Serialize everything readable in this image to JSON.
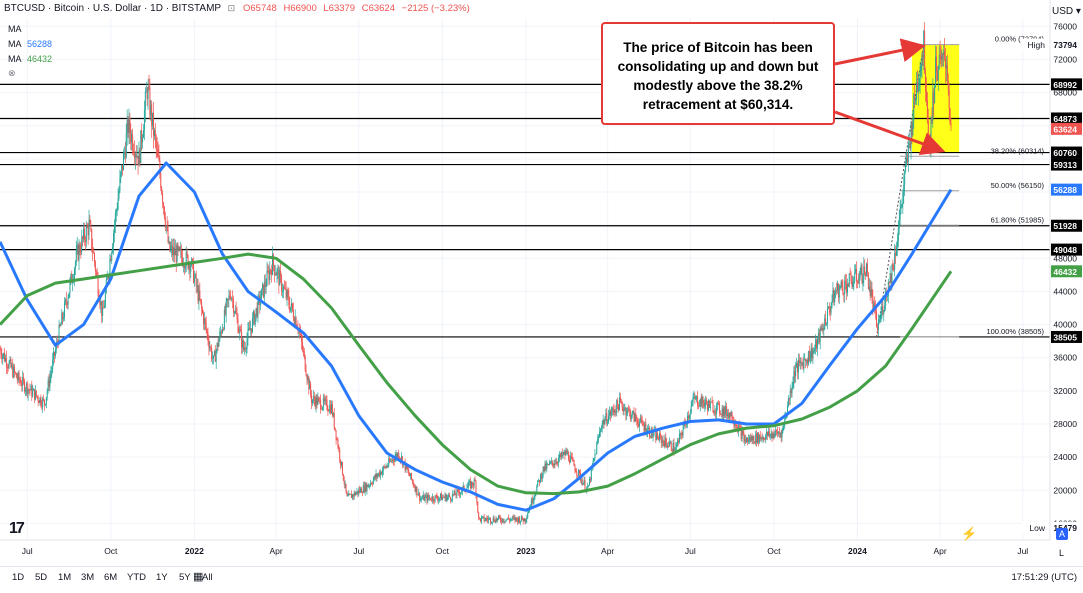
{
  "header": {
    "symbol": "BTCUSD · Bitcoin · U.S. Dollar · 1D · BITSTAMP",
    "open": "O65748",
    "high": "H66900",
    "low": "L63379",
    "close": "C63624",
    "change": "−2125 (−3.23%)"
  },
  "indicators": [
    {
      "label": "MA",
      "value": "",
      "color": "#131722"
    },
    {
      "label": "MA",
      "value": "56288",
      "color": "#2979ff"
    },
    {
      "label": "MA",
      "value": "46432",
      "color": "#43a047"
    }
  ],
  "callout": {
    "text": "The price of Bitcoin has been consolidating up and down but modestly above the 38.2% retracement at $60,314."
  },
  "timeframes": [
    "1D",
    "5D",
    "1M",
    "3M",
    "6M",
    "YTD",
    "1Y",
    "5Y",
    "All"
  ],
  "clock": "17:51:29 (UTC)",
  "scale_buttons": {
    "auto": "A",
    "log": "L"
  },
  "colors": {
    "up": "#26a69a",
    "down": "#ef5350",
    "ma_blue": "#2979ff",
    "ma_green": "#43a047",
    "callout_red": "#e53935",
    "highlight": "#ffff00"
  },
  "chart_data": {
    "type": "candlestick",
    "title": "BTCUSD · Bitcoin · U.S. Dollar · 1D · BITSTAMP",
    "y_axis": {
      "range": [
        14000,
        77000
      ],
      "ticks": [
        76000,
        72000,
        68000,
        64000,
        60000,
        56000,
        52000,
        48000,
        44000,
        40000,
        36000,
        32000,
        28000,
        24000,
        20000,
        16000
      ]
    },
    "x_axis": {
      "range": [
        "2021-06-01",
        "2024-07-31"
      ],
      "ticks": [
        {
          "label": "Jul",
          "date": "2021-07-01"
        },
        {
          "label": "Oct",
          "date": "2021-10-01"
        },
        {
          "label": "2022",
          "date": "2022-01-01"
        },
        {
          "label": "Apr",
          "date": "2022-04-01"
        },
        {
          "label": "Jul",
          "date": "2022-07-01"
        },
        {
          "label": "Oct",
          "date": "2022-10-01"
        },
        {
          "label": "2023",
          "date": "2023-01-01"
        },
        {
          "label": "Apr",
          "date": "2023-04-01"
        },
        {
          "label": "Jul",
          "date": "2023-07-01"
        },
        {
          "label": "Oct",
          "date": "2023-10-01"
        },
        {
          "label": "2024",
          "date": "2024-01-01"
        },
        {
          "label": "Apr",
          "date": "2024-04-01"
        },
        {
          "label": "Jul",
          "date": "2024-07-01"
        }
      ]
    },
    "price_path": [
      [
        "2021-06-01",
        37000
      ],
      [
        "2021-06-20",
        33500
      ],
      [
        "2021-07-20",
        30500
      ],
      [
        "2021-08-05",
        39000
      ],
      [
        "2021-08-25",
        48500
      ],
      [
        "2021-09-07",
        52000
      ],
      [
        "2021-09-22",
        41000
      ],
      [
        "2021-10-06",
        53000
      ],
      [
        "2021-10-20",
        64000
      ],
      [
        "2021-11-01",
        60000
      ],
      [
        "2021-11-10",
        68500
      ],
      [
        "2021-11-25",
        57500
      ],
      [
        "2021-12-04",
        49000
      ],
      [
        "2021-12-28",
        47500
      ],
      [
        "2022-01-22",
        35500
      ],
      [
        "2022-02-10",
        44000
      ],
      [
        "2022-02-24",
        37000
      ],
      [
        "2022-03-28",
        47500
      ],
      [
        "2022-04-25",
        40000
      ],
      [
        "2022-05-10",
        31000
      ],
      [
        "2022-06-01",
        30000
      ],
      [
        "2022-06-18",
        19000
      ],
      [
        "2022-07-10",
        20500
      ],
      [
        "2022-08-14",
        24500
      ],
      [
        "2022-09-07",
        19000
      ],
      [
        "2022-10-10",
        19200
      ],
      [
        "2022-11-06",
        21000
      ],
      [
        "2022-11-10",
        16500
      ],
      [
        "2022-12-31",
        16500
      ],
      [
        "2023-01-20",
        22500
      ],
      [
        "2023-02-15",
        24500
      ],
      [
        "2023-03-10",
        20000
      ],
      [
        "2023-03-25",
        28000
      ],
      [
        "2023-04-14",
        30500
      ],
      [
        "2023-05-20",
        26800
      ],
      [
        "2023-06-15",
        25000
      ],
      [
        "2023-07-05",
        31000
      ],
      [
        "2023-08-15",
        29200
      ],
      [
        "2023-08-30",
        26000
      ],
      [
        "2023-10-10",
        27000
      ],
      [
        "2023-10-24",
        34500
      ],
      [
        "2023-11-15",
        37000
      ],
      [
        "2023-12-08",
        44000
      ],
      [
        "2024-01-11",
        46500
      ],
      [
        "2024-01-23",
        39500
      ],
      [
        "2024-02-10",
        47500
      ],
      [
        "2024-02-28",
        62500
      ],
      [
        "2024-03-05",
        68000
      ],
      [
        "2024-03-14",
        73794
      ],
      [
        "2024-03-20",
        61500
      ],
      [
        "2024-03-27",
        71000
      ],
      [
        "2024-04-08",
        72000
      ],
      [
        "2024-04-13",
        63624
      ]
    ],
    "series": [
      {
        "name": "MA (blue)",
        "last_value": 56288,
        "values": [
          [
            "2021-06-01",
            50000
          ],
          [
            "2021-07-01",
            43000
          ],
          [
            "2021-08-01",
            37500
          ],
          [
            "2021-09-01",
            40000
          ],
          [
            "2021-10-01",
            45500
          ],
          [
            "2021-11-01",
            55500
          ],
          [
            "2021-12-01",
            59500
          ],
          [
            "2022-01-01",
            56000
          ],
          [
            "2022-02-01",
            48500
          ],
          [
            "2022-03-01",
            44000
          ],
          [
            "2022-04-01",
            41500
          ],
          [
            "2022-05-01",
            39000
          ],
          [
            "2022-06-01",
            35000
          ],
          [
            "2022-07-01",
            29000
          ],
          [
            "2022-08-01",
            24500
          ],
          [
            "2022-09-01",
            22500
          ],
          [
            "2022-10-01",
            21000
          ],
          [
            "2022-11-01",
            19800
          ],
          [
            "2022-12-01",
            18300
          ],
          [
            "2023-01-01",
            17600
          ],
          [
            "2023-02-01",
            19000
          ],
          [
            "2023-03-01",
            21500
          ],
          [
            "2023-04-01",
            24500
          ],
          [
            "2023-05-01",
            26500
          ],
          [
            "2023-06-01",
            27500
          ],
          [
            "2023-07-01",
            28300
          ],
          [
            "2023-08-01",
            28500
          ],
          [
            "2023-09-01",
            28000
          ],
          [
            "2023-10-01",
            28000
          ],
          [
            "2023-11-01",
            30500
          ],
          [
            "2023-12-01",
            35000
          ],
          [
            "2024-01-01",
            39500
          ],
          [
            "2024-02-01",
            43500
          ],
          [
            "2024-03-01",
            48500
          ],
          [
            "2024-04-13",
            56288
          ]
        ]
      },
      {
        "name": "MA (green)",
        "last_value": 46432,
        "values": [
          [
            "2021-06-01",
            40000
          ],
          [
            "2021-07-01",
            43500
          ],
          [
            "2021-08-01",
            45000
          ],
          [
            "2021-09-01",
            45500
          ],
          [
            "2021-10-01",
            46000
          ],
          [
            "2021-11-01",
            46500
          ],
          [
            "2021-12-01",
            47000
          ],
          [
            "2022-01-01",
            47500
          ],
          [
            "2022-02-01",
            48000
          ],
          [
            "2022-03-01",
            48500
          ],
          [
            "2022-04-01",
            48000
          ],
          [
            "2022-05-01",
            45500
          ],
          [
            "2022-06-01",
            42000
          ],
          [
            "2022-07-01",
            37500
          ],
          [
            "2022-08-01",
            33000
          ],
          [
            "2022-09-01",
            29000
          ],
          [
            "2022-10-01",
            25500
          ],
          [
            "2022-11-01",
            22500
          ],
          [
            "2022-12-01",
            20500
          ],
          [
            "2023-01-01",
            19700
          ],
          [
            "2023-02-01",
            19600
          ],
          [
            "2023-03-01",
            19800
          ],
          [
            "2023-04-01",
            20500
          ],
          [
            "2023-05-01",
            22000
          ],
          [
            "2023-06-01",
            23800
          ],
          [
            "2023-07-01",
            25500
          ],
          [
            "2023-08-01",
            26800
          ],
          [
            "2023-09-01",
            27500
          ],
          [
            "2023-10-01",
            27800
          ],
          [
            "2023-11-01",
            28600
          ],
          [
            "2023-12-01",
            30000
          ],
          [
            "2024-01-01",
            32000
          ],
          [
            "2024-02-01",
            35000
          ],
          [
            "2024-03-01",
            39500
          ],
          [
            "2024-04-13",
            46432
          ]
        ]
      }
    ],
    "horizontal_levels": [
      {
        "value": 68992,
        "label": "68992"
      },
      {
        "value": 64873,
        "label": "64873"
      },
      {
        "value": 60760,
        "label": "60760"
      },
      {
        "value": 59313,
        "label": "59313"
      },
      {
        "value": 51928,
        "label": "51928"
      },
      {
        "value": 49048,
        "label": "49048"
      },
      {
        "value": 38505,
        "label": "38505"
      }
    ],
    "fibonacci": [
      {
        "value": 73794,
        "label": "0.00% (73794)"
      },
      {
        "value": 60314,
        "label": "38.20% (60314)"
      },
      {
        "value": 56150,
        "label": "50.00% (56150)"
      },
      {
        "value": 51985,
        "label": "61.80% (51985)"
      },
      {
        "value": 38505,
        "label": "100.00% (38505)"
      }
    ],
    "fib_span": [
      "2024-02-17",
      "2024-04-22"
    ],
    "axis_badges": [
      {
        "value": 73794,
        "label": "73794",
        "tag": "High",
        "style": "plain"
      },
      {
        "value": 68992,
        "label": "68992",
        "style": "black"
      },
      {
        "value": 64873,
        "label": "64873",
        "style": "black"
      },
      {
        "value": 63624,
        "label": "63624",
        "style": "red"
      },
      {
        "value": 60760,
        "label": "60760",
        "style": "black"
      },
      {
        "value": 59313,
        "label": "59313",
        "style": "black"
      },
      {
        "value": 56288,
        "label": "56288",
        "style": "blue"
      },
      {
        "value": 51928,
        "label": "51928",
        "style": "black"
      },
      {
        "value": 49048,
        "label": "49048",
        "style": "black"
      },
      {
        "value": 46432,
        "label": "46432",
        "style": "green"
      },
      {
        "value": 38505,
        "label": "38505",
        "style": "black"
      },
      {
        "value": 15479,
        "label": "15479",
        "tag": "Low",
        "style": "plain"
      }
    ],
    "consolidation_box": {
      "x_range": [
        "2024-03-01",
        "2024-04-22"
      ],
      "y_range": [
        60700,
        73800
      ]
    },
    "arrows": [
      {
        "to_date": "2024-03-14",
        "to_value": 73794
      },
      {
        "to_date": "2024-04-05",
        "to_value": 60600
      }
    ],
    "projection": {
      "from_date": "2024-01-22",
      "from_value": 38505,
      "to_date": "2024-03-14",
      "to_value": 73794
    }
  }
}
